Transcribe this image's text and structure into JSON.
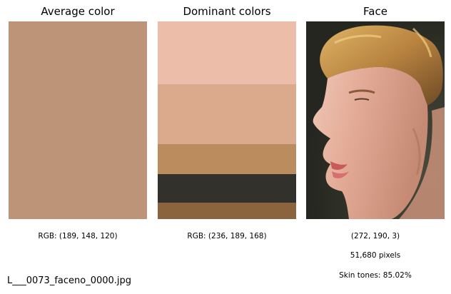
{
  "columns": {
    "average": {
      "title": "Average color",
      "swatch_color": "#bd9478",
      "caption": "RGB: (189, 148, 120)"
    },
    "dominant": {
      "title": "Dominant colors",
      "bands": [
        {
          "color": "#ecbda8",
          "share": 0.316
        },
        {
          "color": "#dba98b",
          "share": 0.303
        },
        {
          "color": "#ba8c5e",
          "share": 0.152
        },
        {
          "color": "#33312b",
          "share": 0.144
        },
        {
          "color": "#8b643d",
          "share": 0.085
        }
      ],
      "caption": "RGB: (236, 189, 168)"
    },
    "face": {
      "title": "Face",
      "caption_shape": "(272, 190, 3)",
      "caption_pixels": "51,680 pixels",
      "caption_skin": "Skin tones: 85.02%"
    }
  },
  "filename": "L___0073_faceno_0000.jpg"
}
